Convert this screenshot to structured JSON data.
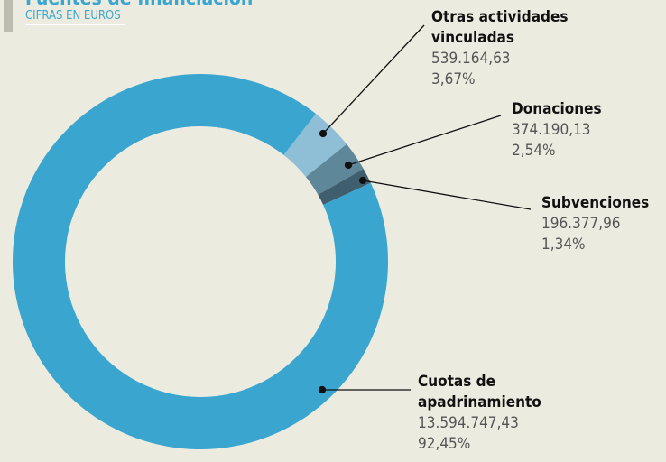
{
  "chart_data": {
    "type": "donut",
    "title": "Fuentes de financiación",
    "subtitle": "CIFRAS EN EUROS",
    "categories": [
      "Otras actividades vinculadas",
      "Donaciones",
      "Subvenciones",
      "Cuotas de apadrinamiento"
    ],
    "values": [
      3.67,
      2.54,
      1.34,
      92.45
    ],
    "value_labels": [
      "3,67%",
      "2,54%",
      "1,34%",
      "92,45%"
    ],
    "amounts": [
      539164.63,
      374190.13,
      196377.96,
      13594747.43
    ],
    "amount_labels": [
      "539.164,63",
      "374.190,13",
      "196.377,96",
      "13.594.747,43"
    ],
    "colors": [
      "#8fbfd6",
      "#5f879a",
      "#3f5f6e",
      "#3aa6d0"
    ]
  }
}
